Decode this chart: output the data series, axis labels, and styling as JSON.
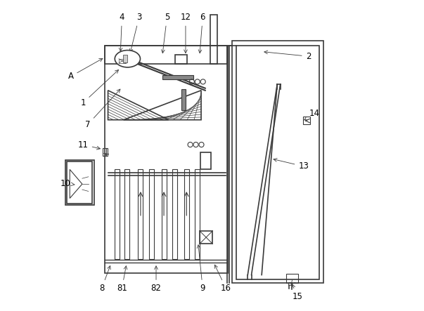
{
  "fig_width": 6.03,
  "fig_height": 4.43,
  "dpi": 100,
  "bg_color": "#ffffff",
  "line_color": "#3a3a3a",
  "line_width": 1.2,
  "thin_line": 0.6,
  "labels_data": [
    [
      "A",
      [
        0.155,
        0.817
      ],
      [
        0.045,
        0.755
      ]
    ],
    [
      "1",
      [
        0.205,
        0.782
      ],
      [
        0.085,
        0.67
      ]
    ],
    [
      "2",
      [
        0.66,
        0.835
      ],
      [
        0.81,
        0.82
      ]
    ],
    [
      "3",
      [
        0.235,
        0.825
      ],
      [
        0.265,
        0.945
      ]
    ],
    [
      "4",
      [
        0.205,
        0.828
      ],
      [
        0.21,
        0.945
      ]
    ],
    [
      "5",
      [
        0.34,
        0.822
      ],
      [
        0.355,
        0.945
      ]
    ],
    [
      "6",
      [
        0.46,
        0.822
      ],
      [
        0.47,
        0.945
      ]
    ],
    [
      "7",
      [
        0.21,
        0.72
      ],
      [
        0.1,
        0.6
      ]
    ],
    [
      "8",
      [
        0.175,
        0.152
      ],
      [
        0.145,
        0.072
      ]
    ],
    [
      "81",
      [
        0.225,
        0.152
      ],
      [
        0.21,
        0.072
      ]
    ],
    [
      "82",
      [
        0.32,
        0.152
      ],
      [
        0.32,
        0.072
      ]
    ],
    [
      "9",
      [
        0.455,
        0.22
      ],
      [
        0.47,
        0.072
      ]
    ],
    [
      "10",
      [
        0.065,
        0.405
      ],
      [
        0.028,
        0.41
      ]
    ],
    [
      "11",
      [
        0.148,
        0.52
      ],
      [
        0.085,
        0.535
      ]
    ],
    [
      "12",
      [
        0.415,
        0.822
      ],
      [
        0.415,
        0.945
      ]
    ],
    [
      "13",
      [
        0.69,
        0.49
      ],
      [
        0.795,
        0.465
      ]
    ],
    [
      "14",
      [
        0.79,
        0.61
      ],
      [
        0.83,
        0.635
      ]
    ],
    [
      "15",
      [
        0.755,
        0.092
      ],
      [
        0.775,
        0.045
      ]
    ],
    [
      "16",
      [
        0.505,
        0.155
      ],
      [
        0.545,
        0.072
      ]
    ]
  ]
}
